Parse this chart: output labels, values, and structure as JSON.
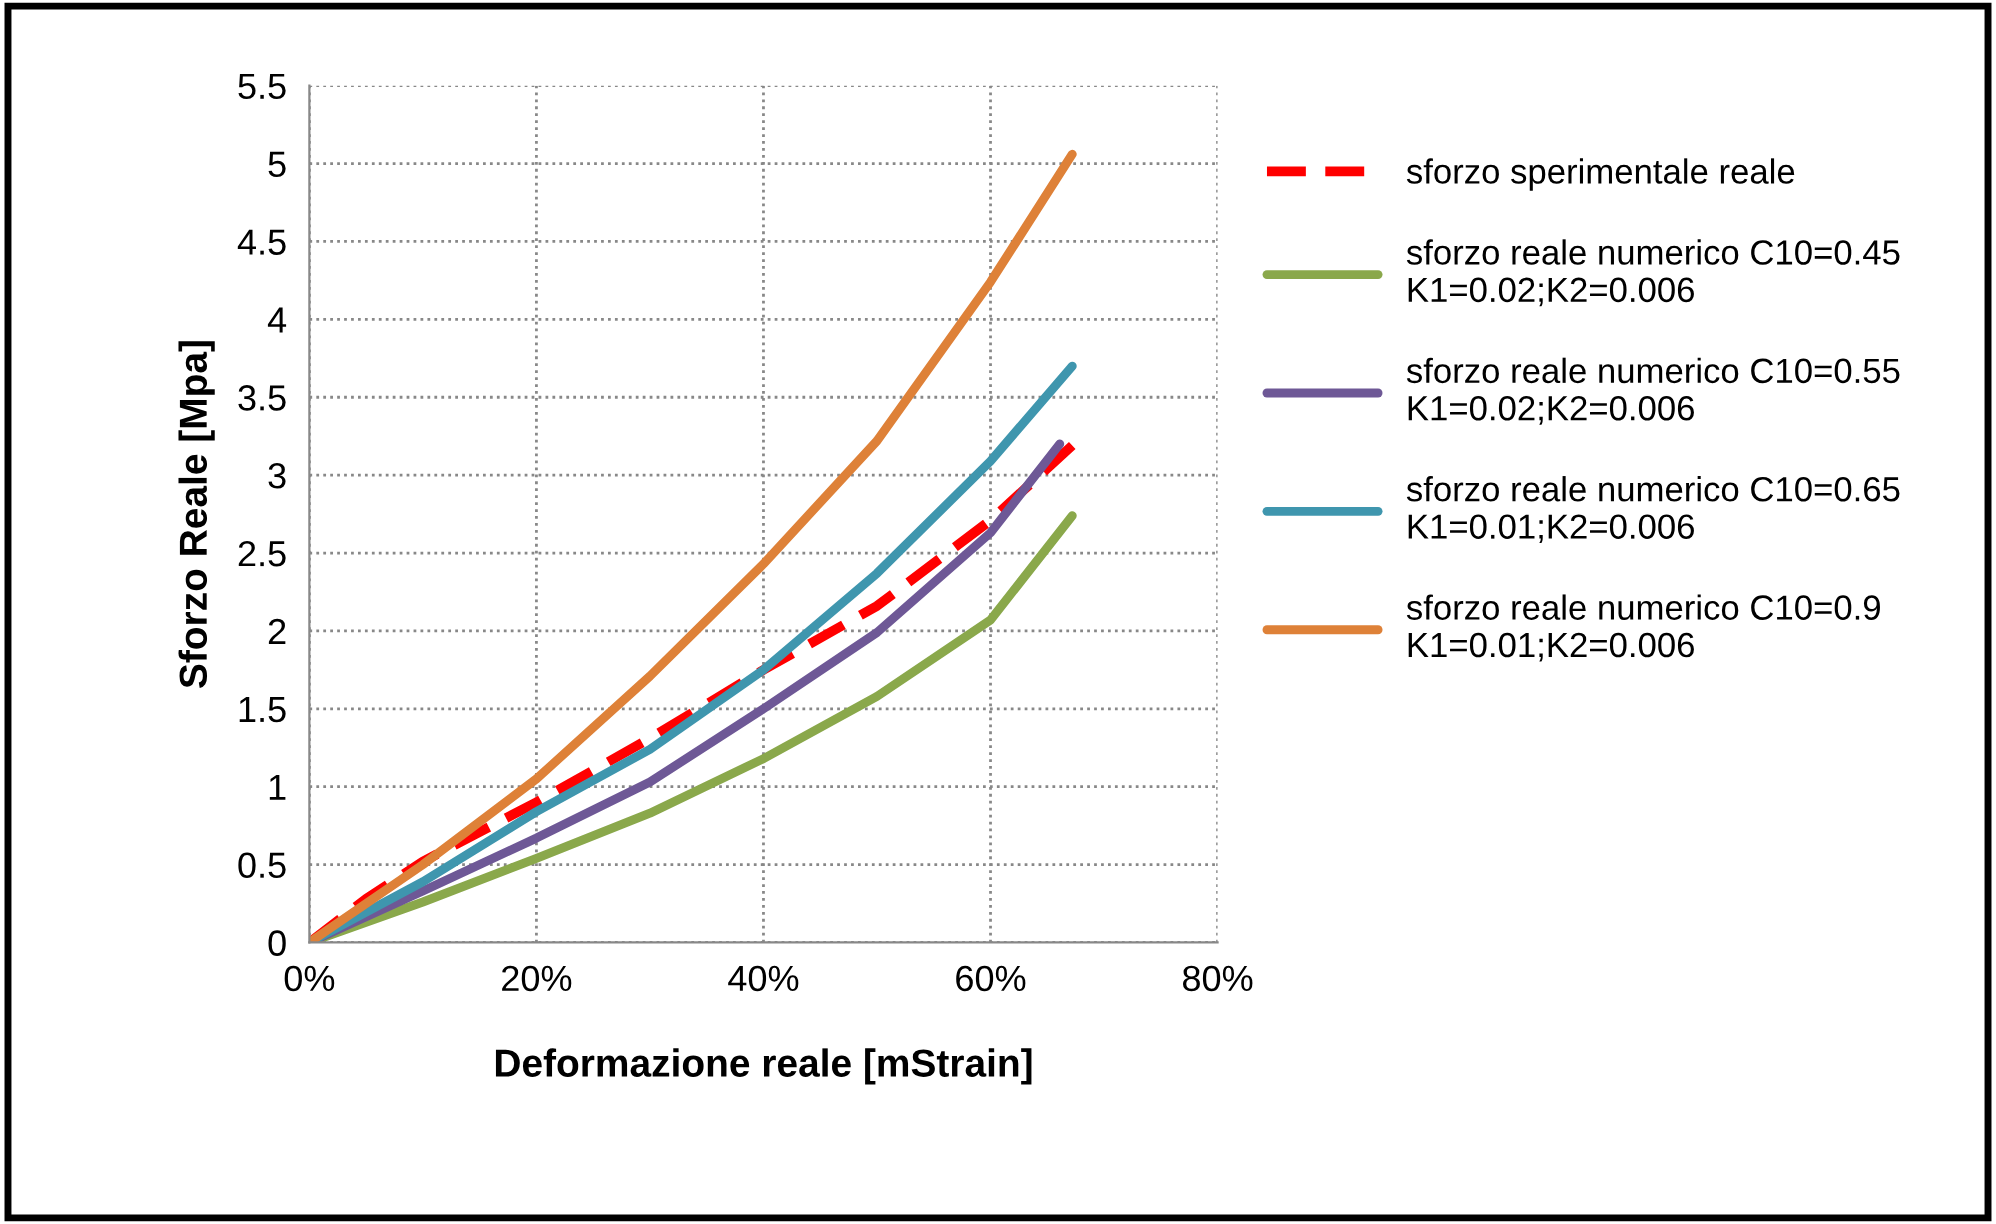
{
  "chart_data": {
    "type": "line",
    "xlabel": "Deformazione reale [mStrain]",
    "ylabel": "Sforzo Reale [Mpa]",
    "xlim": [
      0,
      80
    ],
    "xticks": [
      {
        "value": 0,
        "label": "0%"
      },
      {
        "value": 20,
        "label": "20%"
      },
      {
        "value": 40,
        "label": "40%"
      },
      {
        "value": 60,
        "label": "60%"
      },
      {
        "value": 80,
        "label": "80%"
      }
    ],
    "ylim": [
      0,
      5.5
    ],
    "yticks": [
      0,
      0.5,
      1,
      1.5,
      2,
      2.5,
      3,
      3.5,
      4,
      4.5,
      5,
      5.5
    ],
    "grid": true,
    "legend": "right",
    "marker": "none",
    "series": [
      {
        "name": "sforzo sperimentale reale",
        "color": "#ff0000",
        "line_style": "dashed",
        "x": [
          0,
          5,
          10,
          20,
          30,
          40,
          50,
          60,
          67.2
        ],
        "values": [
          0,
          0.28,
          0.52,
          0.9,
          1.31,
          1.75,
          2.16,
          2.71,
          3.19
        ]
      },
      {
        "name": "sforzo reale numerico C10=0.45\nK1=0.02;K2=0.006",
        "color": "#8aa84b",
        "line_style": "solid",
        "x": [
          0,
          10,
          20,
          30,
          40,
          50,
          60,
          67.2
        ],
        "values": [
          0,
          0.26,
          0.54,
          0.83,
          1.18,
          1.58,
          2.07,
          2.74
        ]
      },
      {
        "name": "sforzo reale numerico C10=0.55\nK1=0.02;K2=0.006",
        "color": "#6e5896",
        "line_style": "solid",
        "x": [
          0,
          10,
          20,
          30,
          40,
          50,
          60,
          66.1
        ],
        "values": [
          0,
          0.33,
          0.67,
          1.03,
          1.5,
          1.99,
          2.63,
          3.2
        ]
      },
      {
        "name": "sforzo reale numerico C10=0.65\nK1=0.01;K2=0.006",
        "color": "#3f96ae",
        "line_style": "solid",
        "x": [
          0,
          10,
          20,
          30,
          40,
          50,
          60,
          67.2
        ],
        "values": [
          0,
          0.39,
          0.84,
          1.24,
          1.75,
          2.37,
          3.09,
          3.7
        ]
      },
      {
        "name": "sforzo reale numerico C10=0.9\nK1=0.01;K2=0.006",
        "color": "#de8138",
        "line_style": "solid",
        "x": [
          0,
          10,
          20,
          30,
          40,
          50,
          60,
          67.2
        ],
        "values": [
          0,
          0.5,
          1.05,
          1.71,
          2.43,
          3.22,
          4.24,
          5.06
        ]
      }
    ]
  }
}
